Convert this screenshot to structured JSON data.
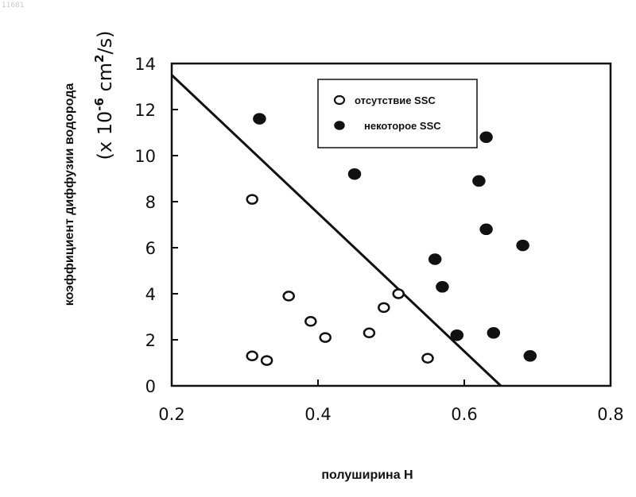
{
  "corner_id": "11681",
  "chart_data": {
    "type": "scatter",
    "xlabel": "полуширина H",
    "ylabel": "коэффициент диффузии водорода",
    "yunit_prefix": "(x 10",
    "yunit_exp1": "-6",
    "yunit_mid": " cm",
    "yunit_exp2": "2",
    "yunit_suffix": "/s)",
    "xlim": [
      0.2,
      0.8
    ],
    "ylim": [
      0,
      14
    ],
    "xticks": [
      0.2,
      0.4,
      0.6,
      0.8
    ],
    "xtick_labels": [
      "0.2",
      "0.4",
      "0.6",
      "0.8"
    ],
    "yticks": [
      0,
      2,
      4,
      6,
      8,
      10,
      12,
      14
    ],
    "ytick_labels": [
      "0",
      "2",
      "4",
      "6",
      "8",
      "10",
      "12",
      "14"
    ],
    "grid": false,
    "legend_position": "top-center",
    "series": [
      {
        "name": "отсутствие SSC",
        "marker": "open-circle",
        "color": "#111111",
        "points": [
          [
            0.31,
            8.1
          ],
          [
            0.31,
            1.3
          ],
          [
            0.33,
            1.1
          ],
          [
            0.36,
            3.9
          ],
          [
            0.39,
            2.8
          ],
          [
            0.41,
            2.1
          ],
          [
            0.47,
            2.3
          ],
          [
            0.49,
            3.4
          ],
          [
            0.51,
            4.0
          ],
          [
            0.55,
            1.2
          ]
        ]
      },
      {
        "name": "некоторое SSC",
        "marker": "filled-circle",
        "color": "#111111",
        "points": [
          [
            0.32,
            11.6
          ],
          [
            0.45,
            9.2
          ],
          [
            0.56,
            5.5
          ],
          [
            0.57,
            4.3
          ],
          [
            0.59,
            2.2
          ],
          [
            0.62,
            8.9
          ],
          [
            0.63,
            10.8
          ],
          [
            0.63,
            6.8
          ],
          [
            0.64,
            2.3
          ],
          [
            0.68,
            6.1
          ],
          [
            0.69,
            1.3
          ]
        ]
      }
    ],
    "line": {
      "points": [
        [
          0.2,
          13.5
        ],
        [
          0.65,
          0
        ]
      ]
    }
  }
}
